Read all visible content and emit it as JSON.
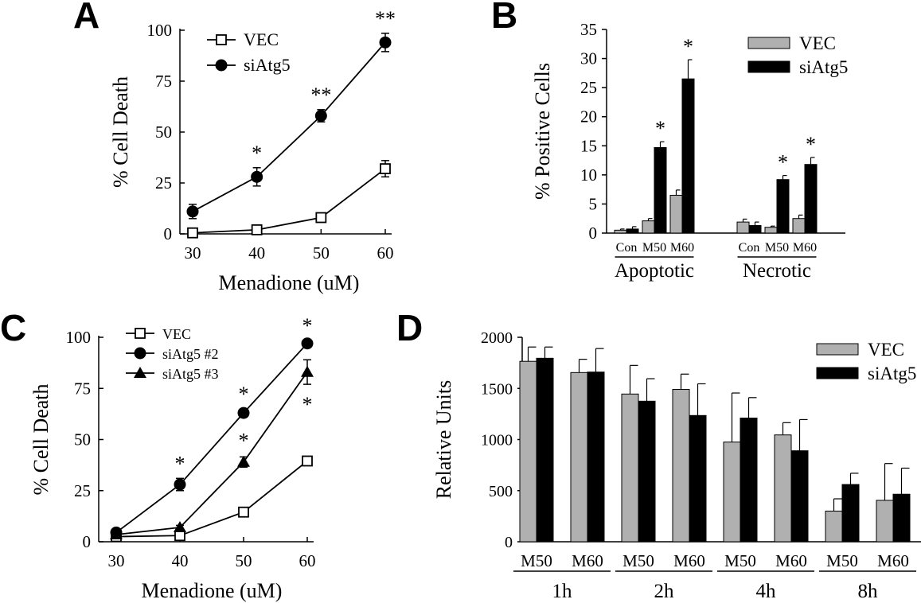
{
  "chart_data": [
    {
      "panel": "A",
      "type": "line",
      "xlabel": "Menadione (uM)",
      "ylabel": "% Cell Death",
      "x": [
        30,
        40,
        50,
        60
      ],
      "xticks": [
        "30",
        "40",
        "50",
        "60"
      ],
      "yticks": [
        "0",
        "25",
        "50",
        "75",
        "100"
      ],
      "ylim": [
        0,
        100
      ],
      "legend_position": "top-left",
      "series": [
        {
          "name": "VEC",
          "marker": "open-square",
          "values": [
            0.5,
            2,
            8,
            32
          ],
          "err": [
            1.5,
            1,
            1.5,
            4
          ],
          "sig": [
            "",
            "",
            "",
            ""
          ]
        },
        {
          "name": "siAtg5",
          "marker": "filled-circle",
          "values": [
            11,
            28,
            58,
            94
          ],
          "err": [
            3.5,
            4.5,
            3,
            4.5
          ],
          "sig": [
            "",
            "*",
            "**",
            "**"
          ]
        }
      ]
    },
    {
      "panel": "B",
      "type": "bar",
      "ylabel": "% Positive Cells",
      "ylim": [
        0,
        35
      ],
      "yticks": [
        "0",
        "5",
        "10",
        "15",
        "20",
        "25",
        "30",
        "35"
      ],
      "groups": [
        "Apoptotic",
        "Necrotic"
      ],
      "categories": [
        "Con",
        "M50",
        "M60",
        "Con",
        "M50",
        "M60"
      ],
      "legend_position": "top-right",
      "series": [
        {
          "name": "VEC",
          "color": "#b0b0b0",
          "values": [
            0.5,
            2.1,
            6.5,
            1.9,
            1.0,
            2.5
          ],
          "err": [
            0.2,
            0.4,
            0.9,
            0.5,
            0.2,
            0.6
          ]
        },
        {
          "name": "siAtg5",
          "color": "#000000",
          "values": [
            0.7,
            14.7,
            26.5,
            1.3,
            9.2,
            11.8
          ],
          "err": [
            0.4,
            1.0,
            3.3,
            0.6,
            0.7,
            1.2
          ]
        }
      ],
      "sig": [
        "",
        "*",
        "*",
        "",
        "*",
        "*"
      ]
    },
    {
      "panel": "C",
      "type": "line",
      "xlabel": "Menadione (uM)",
      "ylabel": "% Cell Death",
      "x": [
        30,
        40,
        50,
        60
      ],
      "xticks": [
        "30",
        "40",
        "50",
        "60"
      ],
      "yticks": [
        "0",
        "25",
        "50",
        "75",
        "100"
      ],
      "ylim": [
        0,
        100
      ],
      "legend_position": "top-left",
      "series": [
        {
          "name": "VEC",
          "marker": "open-square",
          "values": [
            2.5,
            3,
            14.5,
            39.5
          ],
          "err": [
            1,
            1,
            1.5,
            1.5
          ],
          "sig": [
            "",
            "",
            "",
            ""
          ]
        },
        {
          "name": "siAtg5 #2",
          "marker": "filled-circle",
          "values": [
            4.5,
            28,
            63,
            97
          ],
          "err": [
            1.5,
            3,
            2,
            1.5
          ],
          "sig": [
            "",
            "*",
            "*",
            "*"
          ]
        },
        {
          "name": "siAtg5 #3",
          "marker": "filled-triangle",
          "values": [
            3.5,
            7,
            39,
            83
          ],
          "err": [
            1,
            1,
            2.5,
            6
          ],
          "sig": [
            "",
            "",
            "*",
            "*"
          ]
        }
      ]
    },
    {
      "panel": "D",
      "type": "bar",
      "ylabel": "Relative Units",
      "ylim": [
        0,
        2000
      ],
      "yticks": [
        "0",
        "500",
        "1000",
        "1500",
        "2000"
      ],
      "groups": [
        "1h",
        "2h",
        "4h",
        "8h"
      ],
      "categories": [
        "M50",
        "M60",
        "M50",
        "M60",
        "M50",
        "M60",
        "M50",
        "M60"
      ],
      "legend_position": "top-right",
      "series": [
        {
          "name": "VEC",
          "color": "#b0b0b0",
          "values": [
            1765,
            1655,
            1445,
            1490,
            975,
            1045,
            300,
            405
          ],
          "err": [
            140,
            130,
            280,
            150,
            480,
            120,
            120,
            360
          ]
        },
        {
          "name": "siAtg5",
          "color": "#000000",
          "values": [
            1795,
            1660,
            1375,
            1235,
            1210,
            890,
            560,
            465
          ],
          "err": [
            110,
            230,
            220,
            310,
            200,
            305,
            110,
            255
          ]
        }
      ]
    }
  ],
  "panels": {
    "A": "A",
    "B": "B",
    "C": "C",
    "D": "D"
  }
}
